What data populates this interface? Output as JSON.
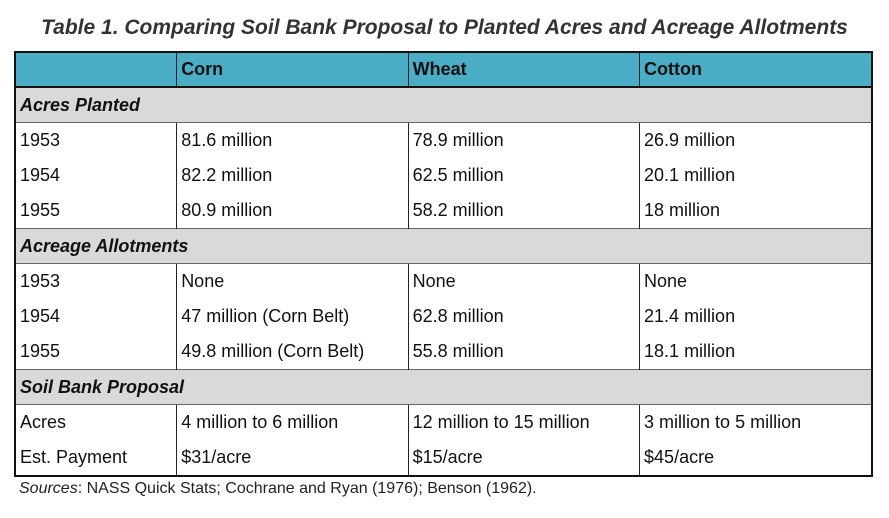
{
  "title": "Table 1. Comparing Soil Bank Proposal to Planted Acres and Acreage Allotments",
  "columns": [
    "",
    "Corn",
    "Wheat",
    "Cotton"
  ],
  "sections": [
    {
      "label": "Acres Planted",
      "rows": [
        [
          "1953",
          "81.6 million",
          "78.9 million",
          "26.9 million"
        ],
        [
          "1954",
          "82.2 million",
          "62.5 million",
          "20.1 million"
        ],
        [
          "1955",
          "80.9 million",
          "58.2 million",
          "18 million"
        ]
      ]
    },
    {
      "label": "Acreage Allotments",
      "rows": [
        [
          "1953",
          "None",
          "None",
          "None"
        ],
        [
          "1954",
          "47 million (Corn Belt)",
          "62.8 million",
          "21.4 million"
        ],
        [
          "1955",
          "49.8 million (Corn Belt)",
          "55.8 million",
          "18.1 million"
        ]
      ]
    },
    {
      "label": "Soil Bank Proposal",
      "rows": [
        [
          "Acres",
          "4 million to 6 million",
          "12 million to 15 million",
          "3 million to 5 million"
        ],
        [
          "Est. Payment",
          "$31/acre",
          "$15/acre",
          "$45/acre"
        ]
      ]
    }
  ],
  "sources": {
    "label": "Sources",
    "text": ": NASS Quick Stats; Cochrane and Ryan (1976); Benson (1962)."
  }
}
